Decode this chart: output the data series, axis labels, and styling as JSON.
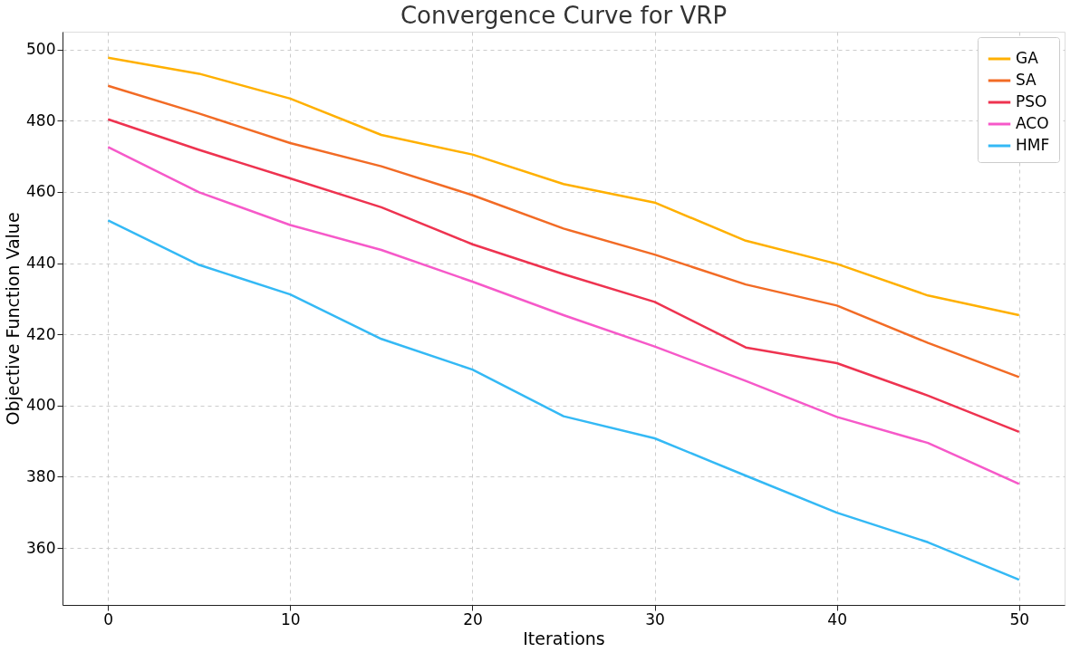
{
  "chart_data": {
    "type": "line",
    "title": "Convergence Curve for VRP",
    "xlabel": "Iterations",
    "ylabel": "Objective Function Value",
    "x": [
      0,
      5,
      10,
      15,
      20,
      25,
      30,
      35,
      40,
      45,
      50
    ],
    "xlim": [
      -2.5,
      52.5
    ],
    "xticks": [
      0,
      10,
      20,
      30,
      40,
      50
    ],
    "ylim": [
      344,
      505
    ],
    "yticks": [
      360,
      380,
      400,
      420,
      440,
      460,
      480,
      500
    ],
    "grid": true,
    "legend": "top right",
    "marker": "none",
    "line_style": "solid",
    "series": [
      {
        "name": "GA",
        "color": "#ffb000",
        "values": [
          497.7,
          493.2,
          486.2,
          476.0,
          470.5,
          462.2,
          457.0,
          446.3,
          439.8,
          430.9,
          425.4
        ]
      },
      {
        "name": "SA",
        "color": "#f26b25",
        "values": [
          489.8,
          482.0,
          473.7,
          467.2,
          459.1,
          449.7,
          442.4,
          434.0,
          428.1,
          417.6,
          408.0
        ]
      },
      {
        "name": "PSO",
        "color": "#ee3350",
        "values": [
          480.4,
          471.8,
          463.8,
          455.7,
          445.3,
          436.9,
          429.1,
          416.3,
          411.9,
          402.8,
          392.6
        ]
      },
      {
        "name": "ACO",
        "color": "#f659c9",
        "values": [
          472.6,
          459.9,
          450.7,
          443.7,
          434.8,
          425.4,
          416.6,
          406.9,
          396.8,
          389.5,
          378.0
        ]
      },
      {
        "name": "HMF",
        "color": "#34b9f5",
        "values": [
          452.0,
          439.5,
          431.2,
          418.7,
          410.1,
          397.0,
          390.8,
          380.3,
          369.9,
          361.6,
          351.1
        ]
      }
    ]
  }
}
